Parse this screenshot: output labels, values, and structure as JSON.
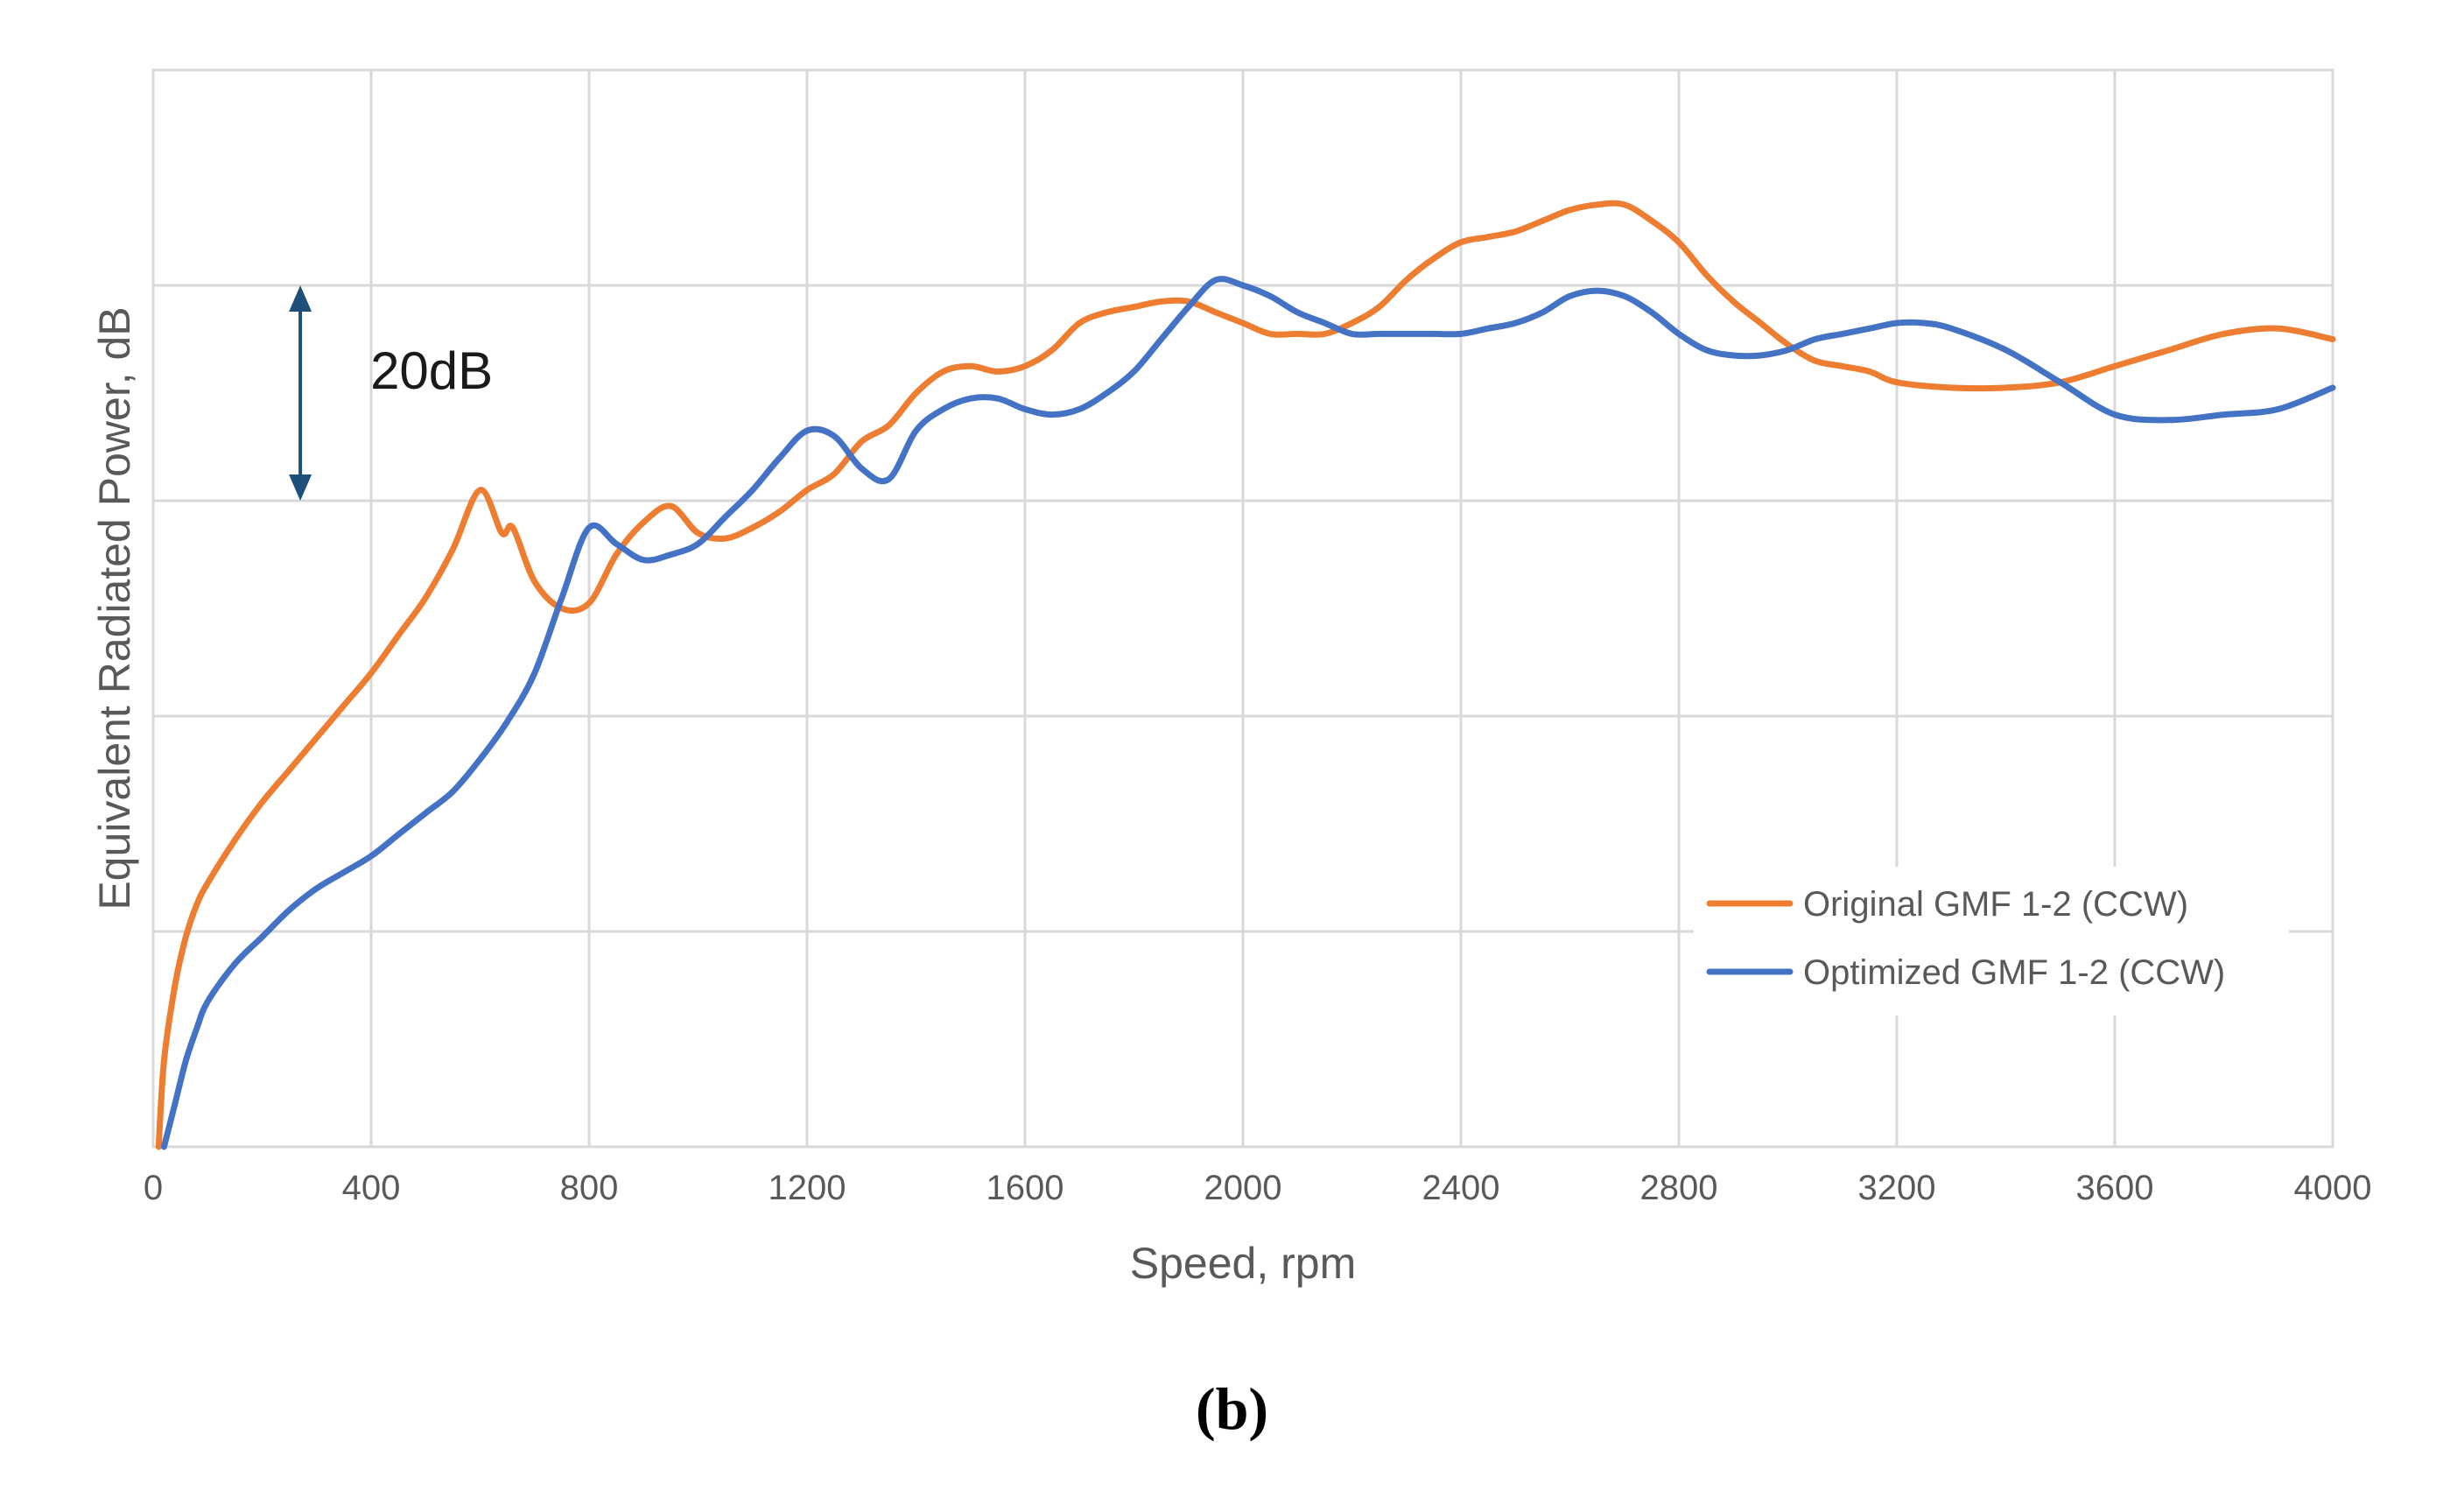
{
  "chart_data": {
    "type": "line",
    "xlabel": "Speed, rpm",
    "ylabel": "Equivalent Radiated Power, dB",
    "xlim": [
      0,
      4000
    ],
    "ylim": [
      0,
      100
    ],
    "x_ticks": [
      "0",
      "400",
      "800",
      "1200",
      "1600",
      "2000",
      "2400",
      "2800",
      "3200",
      "3600",
      "4000"
    ],
    "y_gridlines": [
      0,
      20,
      40,
      60,
      80,
      100
    ],
    "grid": true,
    "legend_position": "lower-right",
    "annotation": {
      "label": "20dB",
      "x": 270,
      "y_from": 60,
      "y_to": 80,
      "color": "#1f4e79"
    },
    "series": [
      {
        "name": "Original GMF 1-2 (CCW)",
        "color": "#ed7d31",
        "x": [
          10,
          20,
          40,
          60,
          80,
          100,
          150,
          200,
          250,
          300,
          350,
          400,
          450,
          500,
          550,
          600,
          640,
          660,
          700,
          750,
          800,
          850,
          900,
          950,
          1000,
          1050,
          1100,
          1150,
          1200,
          1250,
          1300,
          1350,
          1400,
          1450,
          1500,
          1550,
          1600,
          1650,
          1700,
          1750,
          1800,
          1850,
          1900,
          1950,
          2000,
          2050,
          2100,
          2150,
          2200,
          2250,
          2300,
          2350,
          2400,
          2450,
          2500,
          2550,
          2600,
          2650,
          2700,
          2750,
          2800,
          2850,
          2900,
          2950,
          3000,
          3050,
          3100,
          3150,
          3200,
          3300,
          3400,
          3500,
          3600,
          3700,
          3800,
          3900,
          4000
        ],
        "y": [
          0,
          8,
          15,
          19.5,
          22.5,
          24.5,
          28.5,
          32,
          35,
          38,
          41,
          44,
          47.5,
          51,
          55.5,
          61,
          57,
          57.5,
          52.5,
          50,
          50.5,
          55,
          58,
          59.5,
          57,
          56.5,
          57.5,
          59,
          61,
          62.5,
          65.5,
          67,
          70,
          72,
          72.5,
          72,
          72.5,
          74,
          76.5,
          77.5,
          78,
          78.5,
          78.5,
          77.5,
          76.5,
          75.5,
          75.5,
          75.5,
          76.5,
          78,
          80.5,
          82.5,
          84,
          84.5,
          85,
          86,
          87,
          87.5,
          87.5,
          86,
          84,
          81,
          78.5,
          76.5,
          74.5,
          73,
          72.5,
          72,
          71,
          70.5,
          70.5,
          71,
          72.5,
          74,
          75.5,
          76,
          75
        ]
      },
      {
        "name": "Optimized GMF 1-2 (CCW)",
        "color": "#4472c4",
        "x": [
          20,
          40,
          60,
          80,
          100,
          150,
          200,
          250,
          300,
          350,
          400,
          450,
          500,
          550,
          600,
          650,
          700,
          750,
          800,
          850,
          900,
          950,
          1000,
          1050,
          1100,
          1150,
          1200,
          1250,
          1300,
          1350,
          1400,
          1450,
          1500,
          1550,
          1600,
          1650,
          1700,
          1750,
          1800,
          1850,
          1900,
          1950,
          2000,
          2050,
          2100,
          2150,
          2200,
          2250,
          2300,
          2350,
          2400,
          2450,
          2500,
          2550,
          2600,
          2650,
          2700,
          2750,
          2800,
          2850,
          2900,
          2950,
          3000,
          3050,
          3100,
          3150,
          3200,
          3250,
          3300,
          3400,
          3500,
          3600,
          3700,
          3800,
          3900,
          4000
        ],
        "y": [
          0,
          4,
          8,
          11,
          13.5,
          17,
          19.5,
          22,
          24,
          25.5,
          27,
          29,
          31,
          33,
          36,
          39.5,
          44,
          51,
          57.5,
          56,
          54.5,
          55,
          56,
          58.5,
          61,
          64,
          66.5,
          66,
          63,
          62,
          66.5,
          68.5,
          69.5,
          69.5,
          68.5,
          68,
          68.5,
          70,
          72,
          75,
          78,
          80.5,
          80,
          79,
          77.5,
          76.5,
          75.5,
          75.5,
          75.5,
          75.5,
          75.5,
          76,
          76.5,
          77.5,
          79,
          79.5,
          79,
          77.5,
          75.5,
          74,
          73.5,
          73.5,
          74,
          75,
          75.5,
          76,
          76.5,
          76.5,
          76,
          74,
          71,
          68,
          67.5,
          68,
          68.5,
          70.5
        ]
      }
    ]
  },
  "caption": "(b)"
}
